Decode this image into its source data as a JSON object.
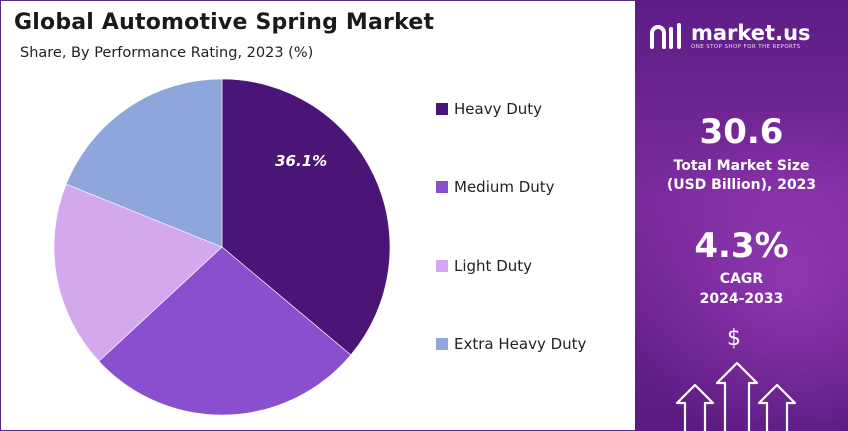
{
  "title": "Global Automotive Spring Market",
  "subtitle": "Share, By Performance Rating, 2023 (%)",
  "chart_data": {
    "type": "pie",
    "categories": [
      "Heavy Duty",
      "Medium Duty",
      "Light Duty",
      "Extra Heavy Duty"
    ],
    "values": [
      36.1,
      27.0,
      18.0,
      18.9
    ],
    "labels_shown": [
      "36.1%",
      "",
      "",
      ""
    ],
    "colors": [
      "#4a1577",
      "#8a4fcf",
      "#d4a8ee",
      "#8fa6dd"
    ],
    "legend_position": "right"
  },
  "legend": [
    {
      "label": "Heavy Duty",
      "color": "#4a1577"
    },
    {
      "label": "Medium Duty",
      "color": "#8a4fcf"
    },
    {
      "label": "Light Duty",
      "color": "#d4a8ee"
    },
    {
      "label": "Extra Heavy Duty",
      "color": "#8fa6dd"
    }
  ],
  "panel": {
    "brand_name": "market.us",
    "brand_tagline": "ONE STOP SHOP FOR THE REPORTS",
    "market_size_value": "30.6",
    "market_size_label_1": "Total Market Size",
    "market_size_label_2": "(USD Billion), 2023",
    "cagr_value": "4.3%",
    "cagr_label_1": "CAGR",
    "cagr_label_2": "2024-2033",
    "currency_symbol": "$",
    "icon": "growth-arrows-icon"
  }
}
